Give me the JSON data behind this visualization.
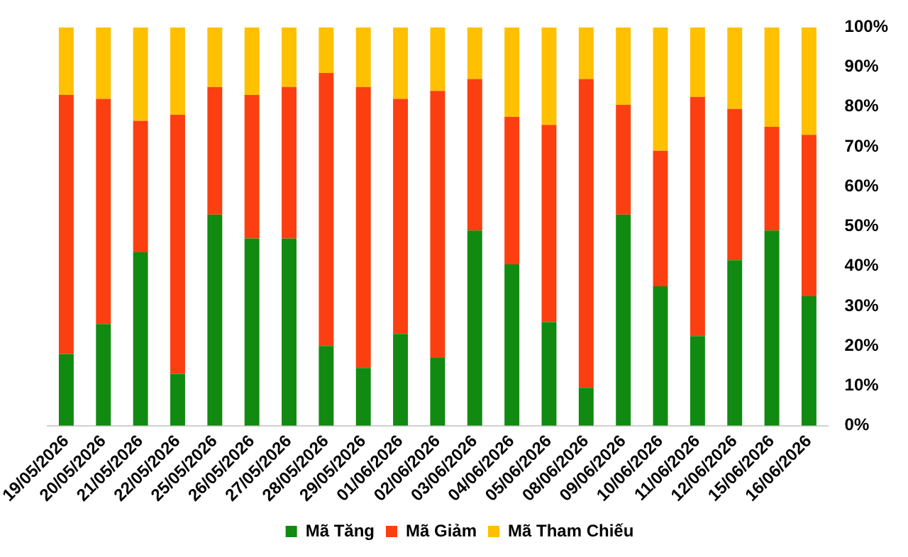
{
  "chart_data": {
    "type": "bar",
    "stacked": true,
    "categories": [
      "19/05/2026",
      "20/05/2026",
      "21/05/2026",
      "22/05/2026",
      "25/05/2026",
      "26/05/2026",
      "27/05/2026",
      "28/05/2026",
      "29/05/2026",
      "01/06/2026",
      "02/06/2026",
      "03/06/2026",
      "04/06/2026",
      "05/06/2026",
      "08/06/2026",
      "09/06/2026",
      "10/06/2026",
      "11/06/2026",
      "12/06/2026",
      "15/06/2026",
      "16/06/2026"
    ],
    "series": [
      {
        "name": "Mã Tăng",
        "color": "#118a11",
        "values": [
          18,
          25.5,
          43.5,
          13,
          53,
          47,
          47,
          20,
          14.5,
          23,
          17,
          49,
          40.5,
          26,
          9.5,
          53,
          35,
          22.5,
          41.5,
          49,
          32.5
        ]
      },
      {
        "name": "Mã Giảm",
        "color": "#fc3f10",
        "values": [
          65,
          56.5,
          33,
          65,
          32,
          36,
          38,
          68.5,
          70.5,
          59,
          67,
          38,
          37,
          49.5,
          77.5,
          27.5,
          34,
          60,
          38,
          26,
          40.5
        ]
      },
      {
        "name": "Mã Tham Chiếu",
        "color": "#ffc000",
        "values": [
          17,
          18,
          23.5,
          22,
          15,
          17,
          15,
          11.5,
          15,
          18,
          16,
          13,
          22.5,
          24.5,
          13,
          19.5,
          31,
          17.5,
          20.5,
          25,
          27
        ]
      }
    ],
    "ylim": [
      0,
      100
    ],
    "yticks": [
      {
        "value": 0,
        "label": "0%"
      },
      {
        "value": 10,
        "label": "10%"
      },
      {
        "value": 20,
        "label": "20%"
      },
      {
        "value": 30,
        "label": "30%"
      },
      {
        "value": 40,
        "label": "40%"
      },
      {
        "value": 50,
        "label": "50%"
      },
      {
        "value": 60,
        "label": "60%"
      },
      {
        "value": 70,
        "label": "70%"
      },
      {
        "value": 80,
        "label": "80%"
      },
      {
        "value": 90,
        "label": "90%"
      },
      {
        "value": 100,
        "label": "100%"
      }
    ],
    "grid": false,
    "legend": "bottom"
  }
}
